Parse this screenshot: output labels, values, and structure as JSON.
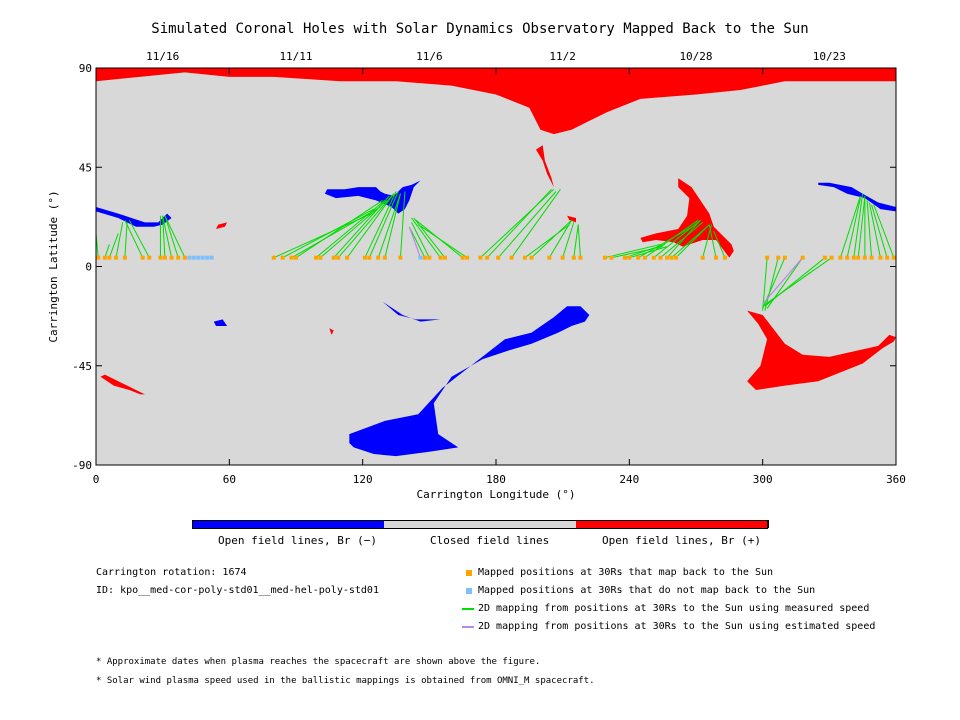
{
  "title": "Simulated Coronal Holes with Solar Dynamics Observatory Mapped Back to the Sun",
  "chart_data": {
    "type": "map",
    "xlabel": "Carrington Longitude (°)",
    "ylabel": "Carrington Latitude (°)",
    "xlim": [
      0,
      360
    ],
    "ylim": [
      -90,
      90
    ],
    "x_ticks": [
      "0",
      "60",
      "120",
      "180",
      "240",
      "300",
      "360"
    ],
    "y_ticks": [
      "90",
      "45",
      "0",
      "-45",
      "-90"
    ],
    "top_dates": [
      {
        "lon": 30,
        "label": "11/16"
      },
      {
        "lon": 90,
        "label": "11/11"
      },
      {
        "lon": 150,
        "label": "11/6"
      },
      {
        "lon": 210,
        "label": "11/2"
      },
      {
        "lon": 270,
        "label": "10/28"
      },
      {
        "lon": 330,
        "label": "10/23"
      }
    ],
    "colors": {
      "negative": "#0000ff",
      "closed": "#d8d8d8",
      "positive": "#ff0000",
      "mapped": "#ffa500",
      "unmapped": "#7fbfff",
      "measured": "#00dd00",
      "estimated": "#bb88ee"
    },
    "mapped_points_lon": [
      1,
      4,
      6,
      9,
      13,
      21,
      24,
      29,
      31,
      34,
      37,
      40,
      80,
      84,
      88,
      90,
      99,
      101,
      107,
      109,
      113,
      121,
      123,
      127,
      130,
      137,
      148,
      150,
      155,
      157,
      165,
      167,
      173,
      176,
      181,
      187,
      193,
      196,
      204,
      210,
      215,
      218,
      229,
      232,
      238,
      240,
      244,
      247,
      251,
      254,
      257,
      259,
      261,
      273,
      279,
      283,
      302,
      307,
      310,
      318,
      328,
      331,
      335,
      338,
      341,
      343,
      346,
      349,
      353,
      356,
      359
    ],
    "unmapped_points_lon": [
      42,
      44,
      46,
      48,
      50,
      52,
      146
    ],
    "field_lines": [
      [
        [
          1,
          4
        ],
        [
          0,
          15
        ]
      ],
      [
        [
          4,
          4
        ],
        [
          6,
          10
        ]
      ],
      [
        [
          6,
          4
        ],
        [
          10,
          15
        ]
      ],
      [
        [
          9,
          4
        ],
        [
          12,
          20
        ]
      ],
      [
        [
          13,
          4
        ],
        [
          14,
          20
        ]
      ],
      [
        [
          21,
          4
        ],
        [
          13,
          21
        ]
      ],
      [
        [
          24,
          4
        ],
        [
          15,
          21
        ]
      ],
      [
        [
          29,
          4
        ],
        [
          29,
          23
        ]
      ],
      [
        [
          31,
          4
        ],
        [
          30,
          23
        ]
      ],
      [
        [
          34,
          4
        ],
        [
          30,
          23
        ]
      ],
      [
        [
          37,
          4
        ],
        [
          31,
          23
        ]
      ],
      [
        [
          40,
          4
        ],
        [
          31,
          23
        ]
      ],
      [
        [
          80,
          4
        ],
        [
          124,
          24
        ]
      ],
      [
        [
          84,
          4
        ],
        [
          125,
          26
        ]
      ],
      [
        [
          88,
          4
        ],
        [
          128,
          27
        ]
      ],
      [
        [
          90,
          4
        ],
        [
          129,
          30
        ]
      ],
      [
        [
          99,
          4
        ],
        [
          130,
          30
        ]
      ],
      [
        [
          101,
          4
        ],
        [
          131,
          30
        ]
      ],
      [
        [
          107,
          4
        ],
        [
          132,
          32
        ]
      ],
      [
        [
          109,
          4
        ],
        [
          134,
          33
        ]
      ],
      [
        [
          113,
          4
        ],
        [
          134,
          33
        ]
      ],
      [
        [
          121,
          4
        ],
        [
          135,
          34
        ]
      ],
      [
        [
          123,
          4
        ],
        [
          136,
          34
        ]
      ],
      [
        [
          127,
          4
        ],
        [
          137,
          33
        ]
      ],
      [
        [
          130,
          4
        ],
        [
          137,
          33
        ]
      ],
      [
        [
          137,
          4
        ],
        [
          139,
          34
        ]
      ],
      [
        [
          148,
          4
        ],
        [
          141,
          18
        ]
      ],
      [
        [
          150,
          4
        ],
        [
          142,
          20
        ]
      ],
      [
        [
          155,
          4
        ],
        [
          142,
          22
        ]
      ],
      [
        [
          157,
          4
        ],
        [
          143,
          22
        ]
      ],
      [
        [
          165,
          4
        ],
        [
          144,
          21
        ]
      ],
      [
        [
          167,
          4
        ],
        [
          145,
          19
        ]
      ],
      [
        [
          173,
          4
        ],
        [
          206,
          35
        ]
      ],
      [
        [
          176,
          4
        ],
        [
          205,
          35
        ]
      ],
      [
        [
          181,
          4
        ],
        [
          207,
          34
        ]
      ],
      [
        [
          187,
          4
        ],
        [
          209,
          35
        ]
      ],
      [
        [
          193,
          4
        ],
        [
          213,
          19
        ]
      ],
      [
        [
          196,
          4
        ],
        [
          214,
          21
        ]
      ],
      [
        [
          204,
          4
        ],
        [
          214,
          21
        ]
      ],
      [
        [
          210,
          4
        ],
        [
          215,
          20
        ]
      ],
      [
        [
          215,
          4
        ],
        [
          217,
          19
        ]
      ],
      [
        [
          218,
          4
        ],
        [
          217,
          19
        ]
      ],
      [
        [
          229,
          4
        ],
        [
          254,
          10
        ]
      ],
      [
        [
          232,
          4
        ],
        [
          255,
          9
        ]
      ],
      [
        [
          238,
          4
        ],
        [
          256,
          10
        ]
      ],
      [
        [
          240,
          4
        ],
        [
          257,
          9
        ]
      ],
      [
        [
          244,
          4
        ],
        [
          270,
          19
        ]
      ],
      [
        [
          247,
          4
        ],
        [
          271,
          21
        ]
      ],
      [
        [
          251,
          4
        ],
        [
          272,
          21
        ]
      ],
      [
        [
          254,
          4
        ],
        [
          273,
          20
        ]
      ],
      [
        [
          257,
          4
        ],
        [
          272,
          21
        ]
      ],
      [
        [
          259,
          4
        ],
        [
          275,
          18
        ]
      ],
      [
        [
          261,
          4
        ],
        [
          276,
          19
        ]
      ],
      [
        [
          273,
          4
        ],
        [
          277,
          19
        ]
      ],
      [
        [
          279,
          4
        ],
        [
          276,
          19
        ]
      ],
      [
        [
          283,
          4
        ],
        [
          278,
          16
        ]
      ],
      [
        [
          302,
          4
        ],
        [
          300,
          -20
        ]
      ],
      [
        [
          307,
          4
        ],
        [
          301,
          -20
        ]
      ],
      [
        [
          310,
          4
        ],
        [
          300,
          -19
        ]
      ],
      [
        [
          318,
          4
        ],
        [
          302,
          -19
        ]
      ],
      [
        [
          328,
          4
        ],
        [
          301,
          -18
        ]
      ],
      [
        [
          331,
          4
        ],
        [
          300,
          -18
        ]
      ],
      [
        [
          335,
          4
        ],
        [
          344,
          32
        ]
      ],
      [
        [
          338,
          4
        ],
        [
          344,
          31
        ]
      ],
      [
        [
          341,
          4
        ],
        [
          345,
          33
        ]
      ],
      [
        [
          343,
          4
        ],
        [
          346,
          32
        ]
      ],
      [
        [
          346,
          4
        ],
        [
          346,
          31
        ]
      ],
      [
        [
          349,
          4
        ],
        [
          347,
          30
        ]
      ],
      [
        [
          353,
          4
        ],
        [
          348,
          29
        ]
      ],
      [
        [
          356,
          4
        ],
        [
          349,
          28
        ]
      ],
      [
        [
          359,
          4
        ],
        [
          350,
          28
        ]
      ]
    ],
    "estimated_lines": [
      [
        [
          146,
          4
        ],
        [
          141,
          18
        ]
      ],
      [
        [
          318,
          4
        ],
        [
          300,
          -17
        ]
      ]
    ],
    "regions_positive": [
      [
        [
          0,
          90
        ],
        [
          360,
          90
        ],
        [
          360,
          84
        ],
        [
          310,
          84
        ],
        [
          290,
          80
        ],
        [
          270,
          78
        ],
        [
          245,
          76
        ],
        [
          230,
          70
        ],
        [
          222,
          66
        ],
        [
          214,
          62
        ],
        [
          206,
          60
        ],
        [
          200,
          62
        ],
        [
          198,
          66
        ],
        [
          195,
          72
        ],
        [
          180,
          78
        ],
        [
          160,
          82
        ],
        [
          135,
          84
        ],
        [
          110,
          84
        ],
        [
          80,
          86
        ],
        [
          60,
          86
        ],
        [
          40,
          88
        ],
        [
          0,
          84
        ]
      ],
      [
        [
          198,
          53
        ],
        [
          201,
          55
        ],
        [
          202,
          48
        ],
        [
          205,
          40
        ],
        [
          206,
          36
        ],
        [
          203,
          42
        ],
        [
          201,
          48
        ]
      ],
      [
        [
          262,
          40
        ],
        [
          268,
          36
        ],
        [
          272,
          30
        ],
        [
          276,
          24
        ],
        [
          278,
          18
        ],
        [
          282,
          14
        ],
        [
          284,
          12
        ],
        [
          286,
          10
        ],
        [
          287,
          7
        ],
        [
          285,
          4
        ],
        [
          282,
          8
        ],
        [
          279,
          12
        ],
        [
          273,
          12
        ],
        [
          264,
          9
        ],
        [
          260,
          11
        ],
        [
          252,
          12
        ],
        [
          246,
          11
        ],
        [
          245,
          13
        ],
        [
          252,
          15
        ],
        [
          262,
          17
        ],
        [
          266,
          23
        ],
        [
          267,
          31
        ],
        [
          262,
          36
        ]
      ],
      [
        [
          293,
          -20
        ],
        [
          300,
          -22
        ],
        [
          310,
          -35
        ],
        [
          318,
          -40
        ],
        [
          330,
          -41
        ],
        [
          352,
          -36
        ],
        [
          357,
          -31
        ],
        [
          360,
          -32
        ],
        [
          359,
          -34
        ],
        [
          354,
          -37
        ],
        [
          345,
          -44
        ],
        [
          325,
          -52
        ],
        [
          310,
          -54
        ],
        [
          297,
          -56
        ],
        [
          293,
          -52
        ],
        [
          299,
          -45
        ],
        [
          302,
          -33
        ],
        [
          298,
          -26
        ]
      ],
      [
        [
          2,
          -50
        ],
        [
          8,
          -54
        ],
        [
          15,
          -56
        ],
        [
          20,
          -58
        ],
        [
          22,
          -58
        ],
        [
          18,
          -56
        ],
        [
          10,
          -52
        ],
        [
          4,
          -49
        ]
      ],
      [
        [
          54,
          17
        ],
        [
          58,
          18
        ],
        [
          59,
          20
        ],
        [
          55,
          19
        ]
      ],
      [
        [
          105,
          -28
        ],
        [
          107,
          -29
        ],
        [
          106,
          -31
        ]
      ],
      [
        [
          212,
          23
        ],
        [
          216,
          22
        ],
        [
          216,
          20
        ],
        [
          213,
          21
        ]
      ]
    ],
    "regions_negative": [
      [
        [
          0,
          27
        ],
        [
          10,
          24
        ],
        [
          22,
          20
        ],
        [
          28,
          20
        ],
        [
          30,
          22
        ],
        [
          32,
          24
        ],
        [
          34,
          22
        ],
        [
          30,
          19
        ],
        [
          26,
          18
        ],
        [
          18,
          18
        ],
        [
          10,
          22
        ],
        [
          0,
          25
        ]
      ],
      [
        [
          104,
          35
        ],
        [
          112,
          35
        ],
        [
          118,
          36
        ],
        [
          126,
          36
        ],
        [
          128,
          34
        ],
        [
          130,
          33
        ],
        [
          134,
          32
        ],
        [
          138,
          36
        ],
        [
          142,
          37
        ],
        [
          146,
          39
        ],
        [
          143,
          36
        ],
        [
          141,
          30
        ],
        [
          139,
          26
        ],
        [
          136,
          24
        ],
        [
          133,
          27
        ],
        [
          126,
          30
        ],
        [
          118,
          32
        ],
        [
          108,
          31
        ],
        [
          103,
          33
        ]
      ],
      [
        [
          325,
          38
        ],
        [
          330,
          38
        ],
        [
          340,
          36
        ],
        [
          345,
          33
        ],
        [
          352,
          29
        ],
        [
          360,
          27
        ],
        [
          360,
          25
        ],
        [
          353,
          26
        ],
        [
          346,
          31
        ],
        [
          338,
          33
        ],
        [
          332,
          36
        ],
        [
          325,
          37
        ]
      ],
      [
        [
          129,
          -16
        ],
        [
          136,
          -22
        ],
        [
          144,
          -24
        ],
        [
          155,
          -24
        ],
        [
          146,
          -25
        ],
        [
          138,
          -22
        ]
      ],
      [
        [
          53,
          -25
        ],
        [
          57,
          -24
        ],
        [
          59,
          -27
        ],
        [
          54,
          -27
        ]
      ],
      [
        [
          114,
          -76
        ],
        [
          130,
          -70
        ],
        [
          145,
          -67
        ],
        [
          156,
          -55
        ],
        [
          170,
          -44
        ],
        [
          184,
          -33
        ],
        [
          196,
          -30
        ],
        [
          206,
          -23
        ],
        [
          212,
          -18
        ],
        [
          218,
          -18
        ],
        [
          222,
          -22
        ],
        [
          220,
          -25
        ],
        [
          214,
          -27
        ],
        [
          208,
          -30
        ],
        [
          196,
          -35
        ],
        [
          186,
          -38
        ],
        [
          174,
          -42
        ],
        [
          160,
          -50
        ],
        [
          152,
          -62
        ],
        [
          154,
          -76
        ],
        [
          163,
          -82
        ],
        [
          150,
          -84
        ],
        [
          135,
          -86
        ],
        [
          125,
          -85
        ],
        [
          116,
          -82
        ],
        [
          114,
          -80
        ]
      ]
    ]
  },
  "colorbar": {
    "labels": [
      "Open field lines, Br (−)",
      "Closed field lines",
      "Open field lines, Br (+)"
    ]
  },
  "info": {
    "rotation": "Carrington rotation: 1674",
    "id": "ID: kpo__med-cor-poly-std01__med-hel-poly-std01"
  },
  "legend": [
    {
      "text": "Mapped positions at 30Rs that map back to the Sun",
      "kind": "square",
      "color": "#ffa500"
    },
    {
      "text": "Mapped positions at 30Rs that do not map back to the Sun",
      "kind": "square",
      "color": "#7fbfff"
    },
    {
      "text": "2D mapping from positions at 30Rs to the Sun using measured speed",
      "kind": "line",
      "color": "#00dd00"
    },
    {
      "text": "2D mapping from positions at 30Rs to the Sun using estimated speed",
      "kind": "line",
      "color": "#bb88ee"
    }
  ],
  "notes": [
    "* Approximate dates when plasma reaches the spacecraft are shown above the figure.",
    "* Solar wind plasma speed used in the ballistic mappings is obtained from OMNI_M spacecraft."
  ]
}
